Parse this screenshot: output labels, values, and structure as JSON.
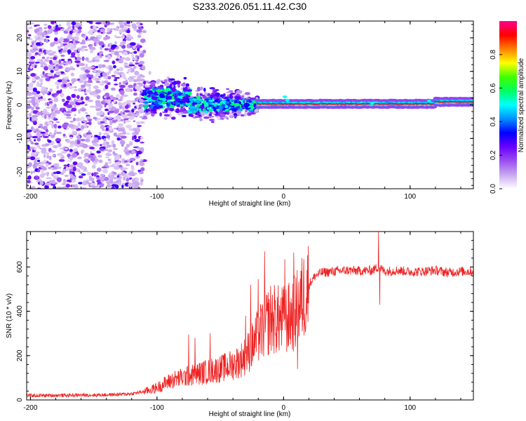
{
  "figure": {
    "title": "S233.2026.051.11.42.C30"
  },
  "chart_data": [
    {
      "type": "heatmap",
      "xlabel": "Height of straight line (km)",
      "ylabel": "Frequency (Hz)",
      "xlim": [
        -203,
        150
      ],
      "ylim": [
        -25,
        25
      ],
      "xticks": [
        -200,
        -100,
        0,
        100
      ],
      "xtick_labels": [
        "-200",
        "-100",
        "0",
        "100"
      ],
      "yticks": [
        -20,
        -10,
        0,
        10,
        20
      ],
      "ytick_labels": [
        "-20",
        "-10",
        "0",
        "10",
        "20"
      ],
      "colorbar": {
        "label": "Normalized spectral amplitude",
        "range": [
          0,
          1
        ],
        "ticks": [
          0.0,
          0.2,
          0.4,
          0.6,
          0.8
        ],
        "tick_labels": [
          "0.0",
          "0.2",
          "0.4",
          "0.6",
          "0.8"
        ],
        "stops": [
          "#ffffff",
          "#c9a8f0",
          "#9a4ef0",
          "#6a00ff",
          "#0000ff",
          "#0090ff",
          "#00ffff",
          "#00ff60",
          "#40ff00",
          "#ffff00",
          "#ff8000",
          "#ff0000",
          "#ff0090"
        ]
      },
      "regions": [
        {
          "name": "noise",
          "x": [
            -203,
            -110
          ],
          "f_spread": 25,
          "amplitude": [
            0.05,
            0.3
          ]
        },
        {
          "name": "transition",
          "x": [
            -110,
            -20
          ],
          "f_spread": [
            9,
            4
          ],
          "amplitude": [
            0.2,
            0.55
          ]
        },
        {
          "name": "signal",
          "x": [
            -20,
            150
          ],
          "f_center": 0.3,
          "amplitude": 0.95
        }
      ]
    },
    {
      "type": "line",
      "xlabel": "Height of straight line (km)",
      "ylabel": "SNR (10 * v/v)",
      "xlim": [
        -203,
        150
      ],
      "ylim": [
        0,
        760
      ],
      "xticks": [
        -200,
        -100,
        0,
        100
      ],
      "xtick_labels": [
        "-200",
        "-100",
        "0",
        "100"
      ],
      "yticks": [
        0,
        200,
        400,
        600
      ],
      "ytick_labels": [
        "0",
        "200",
        "400",
        "600"
      ],
      "color": "#ee2222",
      "series": [
        {
          "name": "SNR",
          "x": [
            -203,
            -190,
            -180,
            -170,
            -160,
            -150,
            -140,
            -130,
            -120,
            -110,
            -100,
            -95,
            -90,
            -85,
            -80,
            -75,
            -70,
            -65,
            -60,
            -55,
            -50,
            -45,
            -40,
            -35,
            -30,
            -25,
            -20,
            -15,
            -10,
            -5,
            0,
            5,
            10,
            15,
            20,
            25,
            30,
            40,
            50,
            60,
            70,
            75,
            80,
            90,
            100,
            110,
            120,
            130,
            140,
            150
          ],
          "y": [
            20,
            20,
            21,
            21,
            22,
            22,
            23,
            25,
            28,
            38,
            55,
            70,
            85,
            95,
            100,
            108,
            115,
            122,
            128,
            135,
            140,
            150,
            160,
            175,
            200,
            240,
            290,
            330,
            370,
            360,
            360,
            370,
            400,
            460,
            520,
            560,
            575,
            580,
            585,
            582,
            585,
            600,
            580,
            585,
            578,
            580,
            585,
            575,
            580,
            580
          ]
        }
      ],
      "spikes": [
        {
          "x": -75,
          "y": 295
        },
        {
          "x": -70,
          "y": 280
        },
        {
          "x": -58,
          "y": 300
        },
        {
          "x": -30,
          "y": 380
        },
        {
          "x": -26,
          "y": 520
        },
        {
          "x": -20,
          "y": 545
        },
        {
          "x": -18,
          "y": 420
        },
        {
          "x": -15,
          "y": 670
        },
        {
          "x": -5,
          "y": 465
        },
        {
          "x": 1,
          "y": 635
        },
        {
          "x": 8,
          "y": 665
        },
        {
          "x": 11,
          "y": 140
        },
        {
          "x": 75,
          "y": 760
        },
        {
          "x": 76,
          "y": 430
        }
      ]
    }
  ]
}
